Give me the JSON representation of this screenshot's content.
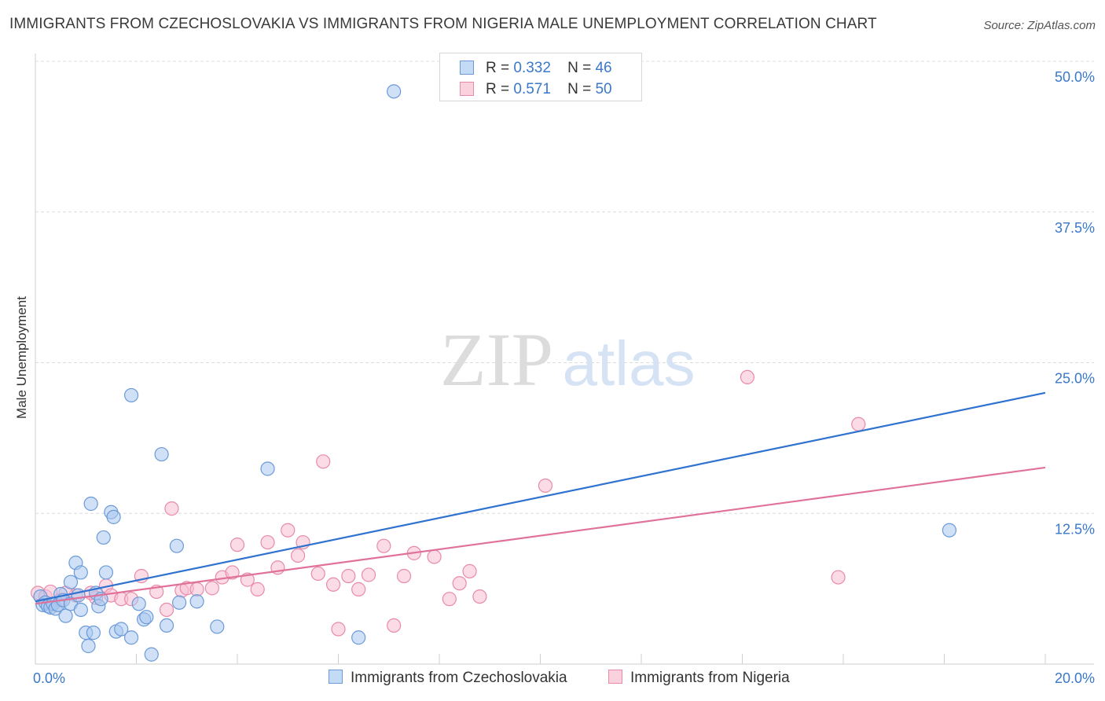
{
  "header": {
    "title": "IMMIGRANTS FROM CZECHOSLOVAKIA VS IMMIGRANTS FROM NIGERIA MALE UNEMPLOYMENT CORRELATION CHART",
    "source": "Source: ZipAtlas.com"
  },
  "watermark": {
    "zip": "ZIP",
    "atlas": "atlas"
  },
  "legend": {
    "r_label": "R =",
    "n_label": "N =",
    "czech": {
      "r": "0.332",
      "n": "46"
    },
    "nigeria": {
      "r": "0.571",
      "n": "50"
    }
  },
  "colors": {
    "czech_fill": "#a9c8f0",
    "czech_stroke": "#6b9ad8",
    "czech_line": "#2f72d0",
    "nigeria_fill": "#f7c0d1",
    "nigeria_stroke": "#e98aa8",
    "nigeria_line": "#e0719a",
    "tick_text": "#3a78c9",
    "grid": "#dcdcdc"
  },
  "chart_data": {
    "type": "scatter",
    "title": "IMMIGRANTS FROM CZECHOSLOVAKIA VS IMMIGRANTS FROM NIGERIA MALE UNEMPLOYMENT CORRELATION CHART",
    "xlabel": "",
    "ylabel": "Male Unemployment",
    "xlim": [
      0,
      20
    ],
    "ylim": [
      0,
      50
    ],
    "x_tick_labels": [
      "0.0%",
      "20.0%"
    ],
    "y_ticks": [
      12.5,
      25.0,
      37.5,
      50.0
    ],
    "y_tick_labels": [
      "12.5%",
      "25.0%",
      "37.5%",
      "50.0%"
    ],
    "grid": true,
    "legend_position": "bottom",
    "series": [
      {
        "name": "Immigrants from Czechoslovakia",
        "trend": {
          "x": [
            0,
            20
          ],
          "y": [
            5.2,
            22.5
          ]
        },
        "points": [
          [
            0.1,
            5.6
          ],
          [
            0.15,
            4.9
          ],
          [
            0.2,
            5.1
          ],
          [
            0.25,
            4.8
          ],
          [
            0.3,
            4.7
          ],
          [
            0.35,
            5.0
          ],
          [
            0.4,
            4.6
          ],
          [
            0.45,
            4.9
          ],
          [
            0.5,
            5.8
          ],
          [
            0.55,
            5.3
          ],
          [
            0.6,
            4.0
          ],
          [
            0.7,
            5.0
          ],
          [
            0.7,
            6.8
          ],
          [
            0.8,
            8.4
          ],
          [
            0.85,
            5.7
          ],
          [
            0.9,
            4.5
          ],
          [
            0.9,
            7.6
          ],
          [
            1.0,
            2.6
          ],
          [
            1.05,
            1.5
          ],
          [
            1.1,
            13.3
          ],
          [
            1.15,
            2.6
          ],
          [
            1.2,
            5.9
          ],
          [
            1.25,
            4.8
          ],
          [
            1.3,
            5.4
          ],
          [
            1.35,
            10.5
          ],
          [
            1.4,
            7.6
          ],
          [
            1.5,
            12.6
          ],
          [
            1.55,
            12.2
          ],
          [
            1.6,
            2.7
          ],
          [
            1.7,
            2.9
          ],
          [
            1.9,
            2.2
          ],
          [
            1.9,
            22.3
          ],
          [
            2.05,
            5.0
          ],
          [
            2.15,
            3.7
          ],
          [
            2.2,
            3.9
          ],
          [
            2.3,
            0.8
          ],
          [
            2.5,
            17.4
          ],
          [
            2.6,
            3.2
          ],
          [
            2.8,
            9.8
          ],
          [
            2.85,
            5.1
          ],
          [
            3.2,
            5.2
          ],
          [
            3.6,
            3.1
          ],
          [
            4.6,
            16.2
          ],
          [
            6.4,
            2.2
          ],
          [
            7.1,
            47.5
          ],
          [
            18.1,
            11.1
          ]
        ]
      },
      {
        "name": "Immigrants from Nigeria",
        "trend": {
          "x": [
            0,
            20
          ],
          "y": [
            5.0,
            16.3
          ]
        },
        "points": [
          [
            0.05,
            5.9
          ],
          [
            0.2,
            5.6
          ],
          [
            0.3,
            6.0
          ],
          [
            0.5,
            5.3
          ],
          [
            0.8,
            5.7
          ],
          [
            1.2,
            5.5
          ],
          [
            1.4,
            6.5
          ],
          [
            1.5,
            5.7
          ],
          [
            1.7,
            5.4
          ],
          [
            1.9,
            5.4
          ],
          [
            2.1,
            7.3
          ],
          [
            2.4,
            6.0
          ],
          [
            2.6,
            4.5
          ],
          [
            2.7,
            12.9
          ],
          [
            2.9,
            6.1
          ],
          [
            3.0,
            6.3
          ],
          [
            3.2,
            6.2
          ],
          [
            3.5,
            6.3
          ],
          [
            3.7,
            7.2
          ],
          [
            3.9,
            7.6
          ],
          [
            4.0,
            9.9
          ],
          [
            4.2,
            7.0
          ],
          [
            4.4,
            6.2
          ],
          [
            4.6,
            10.1
          ],
          [
            4.8,
            8.0
          ],
          [
            5.0,
            11.1
          ],
          [
            5.2,
            9.0
          ],
          [
            5.3,
            10.1
          ],
          [
            5.6,
            7.5
          ],
          [
            5.7,
            16.8
          ],
          [
            5.9,
            6.6
          ],
          [
            6.0,
            2.9
          ],
          [
            6.2,
            7.3
          ],
          [
            6.4,
            6.2
          ],
          [
            6.6,
            7.4
          ],
          [
            6.9,
            9.8
          ],
          [
            7.1,
            3.2
          ],
          [
            7.3,
            7.3
          ],
          [
            7.5,
            9.2
          ],
          [
            7.9,
            8.9
          ],
          [
            8.2,
            5.4
          ],
          [
            8.4,
            6.7
          ],
          [
            8.6,
            7.7
          ],
          [
            8.8,
            5.6
          ],
          [
            10.1,
            14.8
          ],
          [
            14.1,
            23.8
          ],
          [
            15.9,
            7.2
          ],
          [
            16.3,
            19.9
          ],
          [
            0.6,
            5.9
          ],
          [
            1.1,
            5.9
          ]
        ]
      }
    ]
  }
}
